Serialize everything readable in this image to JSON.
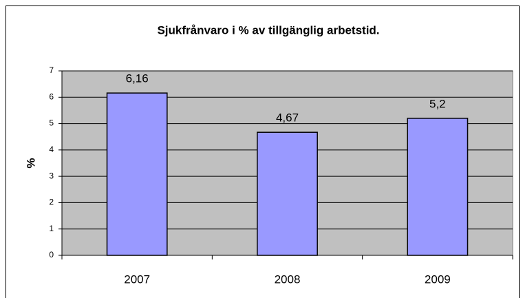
{
  "chart_data": {
    "type": "bar",
    "title": "Sjukfrånvaro i % av tillgänglig arbetstid.",
    "y_label": "%",
    "categories": [
      "2007",
      "2008",
      "2009"
    ],
    "values": [
      6.16,
      4.67,
      5.2
    ],
    "value_labels": [
      "6,16",
      "4,67",
      "5,2"
    ],
    "color": "#9999ff",
    "ylim": [
      0,
      7
    ],
    "yticks": [
      0,
      1,
      2,
      3,
      4,
      5,
      6,
      7
    ],
    "grid": true
  }
}
